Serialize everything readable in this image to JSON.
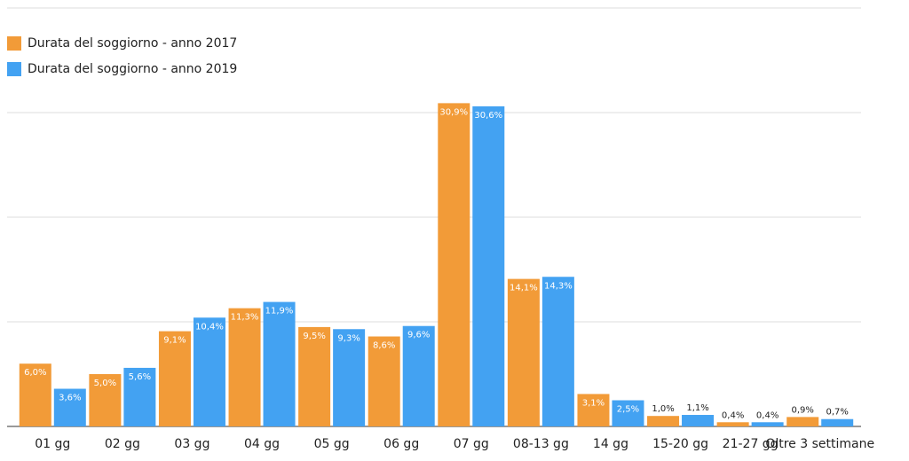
{
  "chart_data": {
    "type": "bar",
    "categories": [
      "01 gg",
      "02 gg",
      "03 gg",
      "04 gg",
      "05 gg",
      "06 gg",
      "07 gg",
      "08-13 gg",
      "14 gg",
      "15-20 gg",
      "21-27 gg",
      "Oltre 3 settimane"
    ],
    "series": [
      {
        "name": "Durata del soggiorno - anno 2017",
        "color": "#f29b38",
        "values": [
          6.0,
          5.0,
          9.1,
          11.3,
          9.5,
          8.6,
          30.9,
          14.1,
          3.1,
          1.0,
          0.4,
          0.9
        ],
        "value_labels": [
          "6,0%",
          "5,0%",
          "9,1%",
          "11,3%",
          "9,5%",
          "8,6%",
          "30,9%",
          "14,1%",
          "3,1%",
          "1,0%",
          "0,4%",
          "0,9%"
        ]
      },
      {
        "name": "Durata del soggiorno - anno 2019",
        "color": "#43a2f2",
        "values": [
          3.6,
          5.6,
          10.4,
          11.9,
          9.3,
          9.6,
          30.6,
          14.3,
          2.5,
          1.1,
          0.4,
          0.7
        ],
        "value_labels": [
          "3,6%",
          "5,6%",
          "10,4%",
          "11,9%",
          "9,3%",
          "9,6%",
          "30,6%",
          "14,3%",
          "2,5%",
          "1,1%",
          "0,4%",
          "0,7%"
        ]
      }
    ],
    "ylim": [
      0,
      40
    ],
    "yticks": [
      0,
      10,
      20,
      30,
      40
    ],
    "grid": true,
    "legend": "top-left"
  }
}
